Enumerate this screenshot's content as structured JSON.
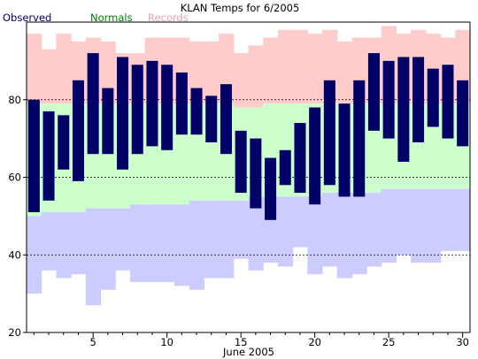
{
  "chart_data": {
    "type": "bar",
    "title": "KLAN Temps for 6/2005",
    "xlabel": "June 2005",
    "ylabel": "",
    "xlim": [
      0.5,
      30.5
    ],
    "ylim": [
      20,
      100
    ],
    "x_ticks": [
      5,
      10,
      15,
      20,
      25,
      30
    ],
    "y_ticks": [
      20,
      40,
      60,
      80
    ],
    "reference_lines": [
      40,
      60,
      80
    ],
    "legend": {
      "placement": "top-left",
      "items": [
        {
          "label": "Observed",
          "color": "#000066"
        },
        {
          "label": "Normals",
          "color": "#008000"
        },
        {
          "label": "Records",
          "color": "#e8a0b0"
        }
      ]
    },
    "colors": {
      "record_high_band": "#ffcccc",
      "normal_band": "#ccffcc",
      "record_low_band": "#ccccff",
      "observed": "#000066",
      "grid_line": "#000000"
    },
    "days": [
      1,
      2,
      3,
      4,
      5,
      6,
      7,
      8,
      9,
      10,
      11,
      12,
      13,
      14,
      15,
      16,
      17,
      18,
      19,
      20,
      21,
      22,
      23,
      24,
      25,
      26,
      27,
      28,
      29,
      30
    ],
    "series": [
      {
        "name": "Observed",
        "high": [
          80,
          77,
          76,
          85,
          92,
          83,
          91,
          89,
          90,
          89,
          87,
          83,
          81,
          84,
          72,
          70,
          65,
          67,
          74,
          78,
          85,
          79,
          85,
          92,
          90,
          91,
          91,
          88,
          89,
          85
        ],
        "low": [
          51,
          54,
          62,
          59,
          66,
          66,
          62,
          66,
          68,
          67,
          71,
          71,
          69,
          66,
          56,
          52,
          49,
          58,
          56,
          53,
          58,
          55,
          55,
          72,
          70,
          64,
          69,
          73,
          70,
          68
        ]
      },
      {
        "name": "Normals",
        "high": [
          79,
          79,
          79,
          79,
          79,
          79,
          79,
          79,
          79,
          79,
          79,
          79,
          79,
          79,
          78,
          78,
          79,
          79,
          79,
          79,
          79,
          79,
          79,
          79,
          79,
          79,
          79,
          79,
          79,
          79
        ],
        "low": [
          50,
          51,
          51,
          51,
          52,
          52,
          52,
          53,
          53,
          53,
          53,
          54,
          54,
          54,
          54,
          55,
          55,
          55,
          55,
          55,
          56,
          56,
          56,
          56,
          57,
          57,
          57,
          57,
          57,
          57
        ]
      },
      {
        "name": "Records",
        "high": [
          97,
          93,
          97,
          95,
          96,
          95,
          92,
          92,
          96,
          96,
          96,
          95,
          95,
          97,
          92,
          94,
          96,
          98,
          98,
          97,
          98,
          95,
          96,
          96,
          99,
          97,
          98,
          97,
          96,
          98
        ],
        "low": [
          30,
          36,
          34,
          35,
          27,
          31,
          36,
          33,
          33,
          33,
          32,
          31,
          34,
          34,
          39,
          36,
          38,
          37,
          42,
          35,
          37,
          34,
          35,
          37,
          38,
          40,
          38,
          38,
          41,
          41
        ]
      }
    ]
  }
}
